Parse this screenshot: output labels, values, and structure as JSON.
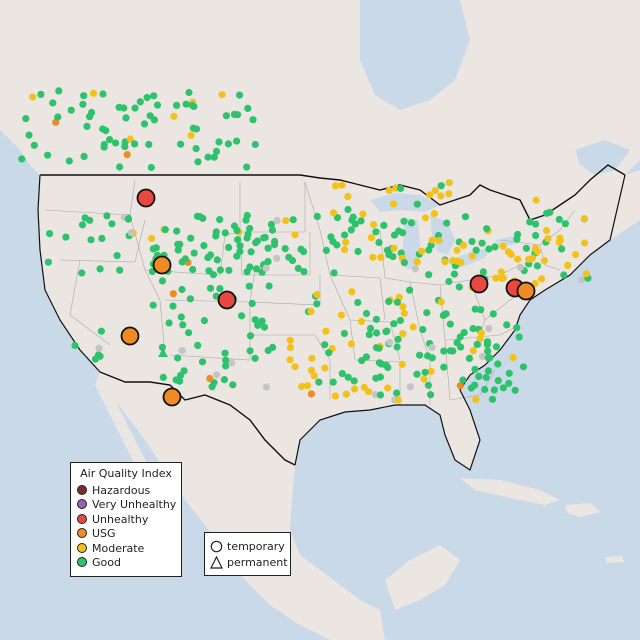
{
  "legend": {
    "title": "Air Quality Index",
    "levels": [
      {
        "label": "Hazardous",
        "color": "#7e2a2a"
      },
      {
        "label": "Very Unhealthy",
        "color": "#9b5fb4"
      },
      {
        "label": "Unhealthy",
        "color": "#e8483f"
      },
      {
        "label": "USG",
        "color": "#f08a24"
      },
      {
        "label": "Moderate",
        "color": "#f2c21a"
      },
      {
        "label": "Good",
        "color": "#2dc26b"
      }
    ]
  },
  "site_types": {
    "temporary": {
      "label": "temporary",
      "icon": "circle-icon"
    },
    "permanent": {
      "label": "permanent",
      "icon": "triangle-icon"
    }
  },
  "colors": {
    "water": "#c9d9e8",
    "land": "#ece6e3",
    "no_data": "#c4c4c4"
  }
}
